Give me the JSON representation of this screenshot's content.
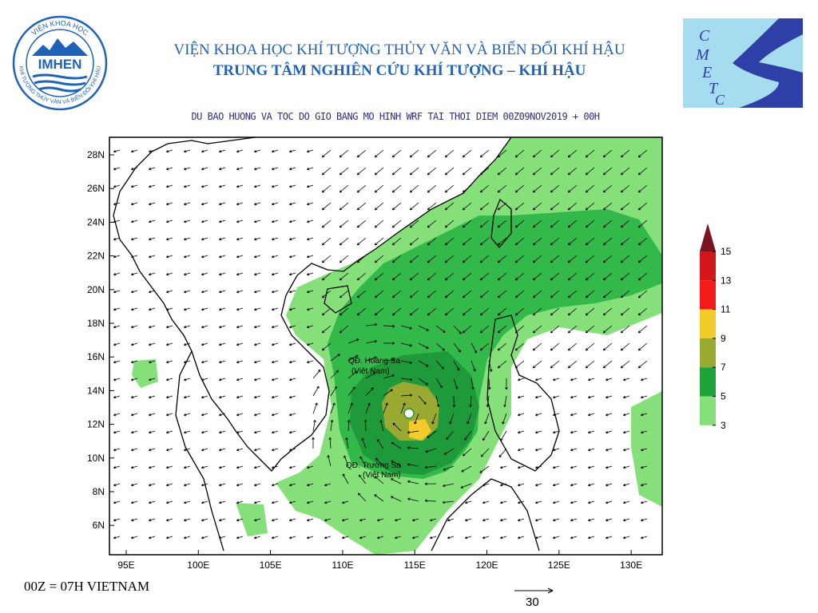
{
  "header": {
    "institute_line": "VIỆN KHOA HỌC KHÍ TƯỢNG THỦY VĂN VÀ BIẾN ĐỔI KHÍ HẬU",
    "center_line": "TRUNG TÂM NGHIÊN CỨU KHÍ TƯỢNG – KHÍ HẬU"
  },
  "logos": {
    "left": {
      "main": "IMHEN",
      "ring_top": "VIỆN KHOA HỌC",
      "ring_bottom": "KHÍ TƯỢNG THỦY VĂN VÀ BIẾN ĐỔI KHÍ HẬU"
    },
    "right": {
      "letters": [
        "C",
        "M",
        "E",
        "T",
        "C"
      ]
    }
  },
  "map": {
    "title": "DU BAO HUONG VA TOC DO GIO BANG MO HINH WRF TAI THOI DIEM  00Z09NOV2019 + 00H",
    "lat_ticks": [
      "28N",
      "26N",
      "24N",
      "22N",
      "20N",
      "18N",
      "16N",
      "14N",
      "12N",
      "10N",
      "8N",
      "6N"
    ],
    "lon_ticks": [
      "95E",
      "100E",
      "105E",
      "110E",
      "115E",
      "120E",
      "125E",
      "130E"
    ],
    "labels": {
      "paracel": "QĐ. Hoàng Sa",
      "paracel_sub": "(Việt Nam)",
      "spratly": "QĐ. Trường Sa",
      "spratly_sub": "(Việt Nam)"
    }
  },
  "legend": {
    "levels": [
      "15",
      "13",
      "11",
      "9",
      "7",
      "5",
      "3"
    ],
    "colors": [
      "#d21818",
      "#f21a1a",
      "#f3cb2a",
      "#9aa931",
      "#1ea33a",
      "#86e07a"
    ],
    "top_color": "#7a1420"
  },
  "footer": {
    "time_note": "00Z = 07H VIETNAM",
    "vector_ref": "30"
  },
  "colors": {
    "title_blue": "#1f63b8",
    "light_green": "#86e07a",
    "mid_green": "#33b84a",
    "dark_green": "#1e9a3a"
  }
}
